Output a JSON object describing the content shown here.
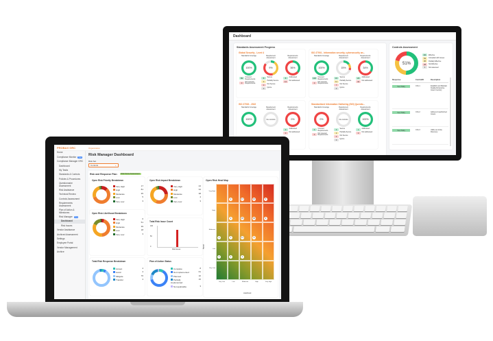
{
  "monitor": {
    "title": "Dashboard",
    "section_title": "Standards Assessment Progress",
    "col_labels": [
      "Standards Coverage",
      "Requirement Assessment",
      "Requirements Assessment"
    ],
    "cards": [
      {
        "title": "Global Security - Level 4",
        "donuts": [
          {
            "label": "100%",
            "segments": [
              [
                "#22c07a",
                100
              ]
            ]
          },
          {
            "label": "9%",
            "segments": [
              [
                "#22c07a",
                9
              ],
              [
                "#f5c242",
                36
              ],
              [
                "#ef4444",
                40
              ],
              [
                "#e5e5e5",
                15
              ]
            ]
          },
          {
            "label": "36%",
            "segments": [
              [
                "#22c07a",
                36
              ],
              [
                "#ef4444",
                64
              ]
            ]
          }
        ],
        "legend1": [
          [
            "#bff0d8",
            "89",
            "Covered Requirements"
          ],
          [
            "#fcd0d0",
            "0",
            "Not covered Requirements"
          ]
        ],
        "legend2": [
          [
            "#bff0d8",
            "8",
            "Secure"
          ],
          [
            "#fcefb8",
            "0",
            "Partially Secure"
          ],
          [
            "#fcd0d0",
            "0",
            "Not Secure"
          ],
          [
            "#e5e5e5",
            "0",
            "Ignore"
          ]
        ],
        "legend3": [
          [
            "#bff0d8",
            "8",
            "Addressed"
          ],
          [
            "#fcd0d0",
            "14",
            "Not addressed"
          ]
        ]
      },
      {
        "title": "ISO 27001 - Information security, cybersecurity an...",
        "donuts": [
          {
            "label": "100%",
            "segments": [
              [
                "#22c07a",
                100
              ]
            ]
          },
          {
            "label": "15%",
            "segments": [
              [
                "#22c07a",
                15
              ],
              [
                "#f5c242",
                10
              ],
              [
                "#ef4444",
                5
              ],
              [
                "#e5e5e5",
                70
              ]
            ]
          },
          {
            "label": "34%",
            "segments": [
              [
                "#22c07a",
                34
              ],
              [
                "#ef4444",
                66
              ]
            ]
          }
        ],
        "legend1": [
          [
            "#bff0d8",
            "100",
            "Covered Requirements"
          ],
          [
            "#fcd0d0",
            "0",
            "Not covered Requirements"
          ]
        ],
        "legend2": [
          [
            "#bff0d8",
            "15",
            "Secure"
          ],
          [
            "#fcefb8",
            "11",
            "Partially Secure"
          ],
          [
            "#fcd0d0",
            "7",
            "Not Secure"
          ],
          [
            "#e5e5e5",
            "0",
            "Ignore"
          ]
        ],
        "legend3": [
          [
            "#bff0d8",
            "23",
            "Addressed"
          ],
          [
            "#fcd0d0",
            "44",
            "Not addressed"
          ]
        ]
      },
      {
        "title": "ISO 27002 - 2022",
        "donuts": [
          {
            "label": "100%",
            "segments": [
              [
                "#22c07a",
                100
              ]
            ]
          },
          {
            "label": "No controls",
            "segments": [
              [
                "#e5e5e5",
                100
              ]
            ]
          },
          {
            "label": "0%",
            "segments": [
              [
                "#ef4444",
                100
              ]
            ]
          }
        ],
        "legend1": [],
        "legend2": [],
        "legend3": [
          [
            "#bff0d8",
            "0",
            "Addressed"
          ],
          [
            "#fcd0d0",
            "0",
            "Not addressed"
          ]
        ]
      },
      {
        "title": "Standardized Information Gathering (SIG) Questio...",
        "donuts": [
          {
            "label": "0%",
            "segments": [
              [
                "#ef4444",
                100
              ]
            ]
          },
          {
            "label": "No controls",
            "segments": [
              [
                "#e5e5e5",
                100
              ]
            ]
          },
          {
            "label": "100%",
            "segments": [
              [
                "#22c07a",
                100
              ]
            ]
          }
        ],
        "legend1": [
          [
            "#bff0d8",
            "0",
            "Covered Requirements"
          ],
          [
            "#fcd0d0",
            "0",
            "Not covered Requirements"
          ]
        ],
        "legend2": [
          [
            "#bff0d8",
            "0",
            "Secure"
          ],
          [
            "#fcefb8",
            "0",
            "Partially Secure"
          ],
          [
            "#fcd0d0",
            "0",
            "Not Secure"
          ],
          [
            "#e5e5e5",
            "0",
            "Ignore"
          ]
        ],
        "legend3": [
          [
            "#bff0d8",
            "1",
            "Addressed"
          ],
          [
            "#fcd0d0",
            "0",
            "Not addressed"
          ]
        ]
      }
    ],
    "controls": {
      "title": "Controls Assessment",
      "percent": "51%",
      "segments": [
        [
          "#22c07a",
          51
        ],
        [
          "#f5c242",
          28
        ],
        [
          "#ef4444",
          21
        ]
      ],
      "legend": [
        [
          "#bff0d8",
          "111",
          "Effective"
        ],
        [
          "#fcefb8",
          "54",
          "Compliant with issues"
        ],
        [
          "#fcefb8",
          "36",
          "Partially Effective"
        ],
        [
          "#fcd0d0",
          "28",
          "Not Effective"
        ],
        [
          "#e5e5e5",
          "1",
          "Not assessed"
        ]
      ],
      "headers": [
        "Response",
        "ControlID",
        "Description"
      ],
      "rows": [
        [
          "Yes, Policy",
          "CS1.1",
          "Establish and Maintain Detailed Enterprise Asset Inventory"
        ],
        [
          "Yes, Policy",
          "CS1.2",
          "Address Unauthorized Assets"
        ],
        [
          "Yes, Policy",
          "CS1.3",
          "Utilize an Active Discovery"
        ]
      ]
    }
  },
  "laptop": {
    "logo": "PROBAX GRC",
    "breadcrumb": "Organization",
    "sidebar": [
      {
        "label": "Home",
        "level": 0
      },
      {
        "label": "Compliance Monitor",
        "level": 0,
        "badge": "New"
      },
      {
        "label": "Compliance Manager GRC",
        "level": 0
      },
      {
        "label": "Dashboard",
        "level": 1
      },
      {
        "label": "My Tasks",
        "level": 1
      },
      {
        "label": "Standards & Controls",
        "level": 1
      },
      {
        "label": "Policies & Procedures",
        "level": 1
      },
      {
        "label": "Questionnaire Assessment",
        "level": 1
      },
      {
        "label": "Risk Assistance",
        "level": 1
      },
      {
        "label": "Technical Review",
        "level": 1
      },
      {
        "label": "Controls Assessment",
        "level": 1
      },
      {
        "label": "Requirements Assessment",
        "level": 1
      },
      {
        "label": "Plan of Action & Milestones",
        "level": 1
      },
      {
        "label": "Risk Manager",
        "level": 1,
        "badge": "New"
      },
      {
        "label": "Dashboard",
        "level": 2,
        "active": true
      },
      {
        "label": "Risk Issues",
        "level": 2
      },
      {
        "label": "Vendor Assistance",
        "level": 0
      },
      {
        "label": "Archived Assessment",
        "level": 0
      },
      {
        "label": "Settings",
        "level": 0
      },
      {
        "label": "Employee Portal",
        "level": 0
      },
      {
        "label": "Vendor Management",
        "level": 0
      },
      {
        "label": "Archive",
        "level": 0
      }
    ],
    "page_title": "Risk Manager Dashboard",
    "filter_label": "Risk Set",
    "filter_value": "Controls",
    "plan_label": "Risk and Response Plan:",
    "plan_badge": "Risk Score Assessment",
    "panels": [
      {
        "title": "Open Risk Priority Breakdown",
        "items": [
          [
            "#c81e1e",
            "Very High",
            "17"
          ],
          [
            "#ef7d2f",
            "High",
            "81"
          ],
          [
            "#f5a623",
            "Moderate",
            "35"
          ],
          [
            "#7a8c2a",
            "Low",
            "5"
          ],
          [
            "#1e6b2e",
            "Very Low",
            "3"
          ]
        ]
      },
      {
        "title": "Open Risk Impact Breakdown",
        "items": [
          [
            "#c81e1e",
            "Very High",
            "24"
          ],
          [
            "#ef7d2f",
            "High",
            "34"
          ],
          [
            "#f5a623",
            "Moderate",
            "38"
          ],
          [
            "#7a8c2a",
            "Low",
            "4"
          ],
          [
            "#1e6b2e",
            "Very Low",
            "3"
          ]
        ]
      },
      {
        "title": "Open Risk Likelihood Breakdown",
        "items": [
          [
            "#c81e1e",
            "Very High",
            "6"
          ],
          [
            "#ef7d2f",
            "High",
            "51"
          ],
          [
            "#f5a623",
            "Moderate",
            "39"
          ],
          [
            "#7a8c2a",
            "Low",
            "18"
          ],
          [
            "#1e6b2e",
            "Very Low",
            "3"
          ]
        ]
      },
      {
        "title": "Total Risk Response Breakdown",
        "items": [
          [
            "#2cc3b5",
            "Accept",
            "4"
          ],
          [
            "#3b82f6",
            "Avoid",
            "4"
          ],
          [
            "#93c5fd",
            "Mitigate",
            "76"
          ],
          [
            "#1e88c8",
            "Transfer",
            "4"
          ]
        ]
      },
      {
        "title": "Plan of Action Status",
        "items": [
          [
            "#2cc3b5",
            "Complete",
            "8"
          ],
          [
            "#3b82f6",
            "Not implemented",
            "61"
          ],
          [
            "#93c5fd",
            "Planned",
            "10"
          ],
          [
            "#1e88c8",
            "Partially implemented",
            "15"
          ],
          [
            "#c4b5fd",
            "Not applicable",
            "3"
          ]
        ]
      }
    ],
    "issue_count": {
      "title": "Total Risk Issue Count",
      "y_ticks": [
        "100",
        "50",
        "0"
      ],
      "category": "Risk Issues",
      "value": 85,
      "ymax": 100
    },
    "heatmap": {
      "title": "Open Risk Heat Map",
      "ylabel": "Impact",
      "xlabel": "Likelihood",
      "y_labels": [
        "Very High",
        "High",
        "Moderate",
        "Low",
        "Very Low"
      ],
      "x_labels": [
        "Very Low",
        "Low",
        "Moderate",
        "High",
        "Very High"
      ],
      "counts": [
        [
          null,
          "2",
          "17",
          "15",
          "5"
        ],
        [
          null,
          "2",
          "25",
          "29",
          "6"
        ],
        [
          "1",
          "7",
          "17",
          "5",
          null
        ],
        [
          "1",
          "1",
          "1",
          null,
          null
        ],
        [
          null,
          null,
          null,
          null,
          null
        ]
      ]
    }
  }
}
